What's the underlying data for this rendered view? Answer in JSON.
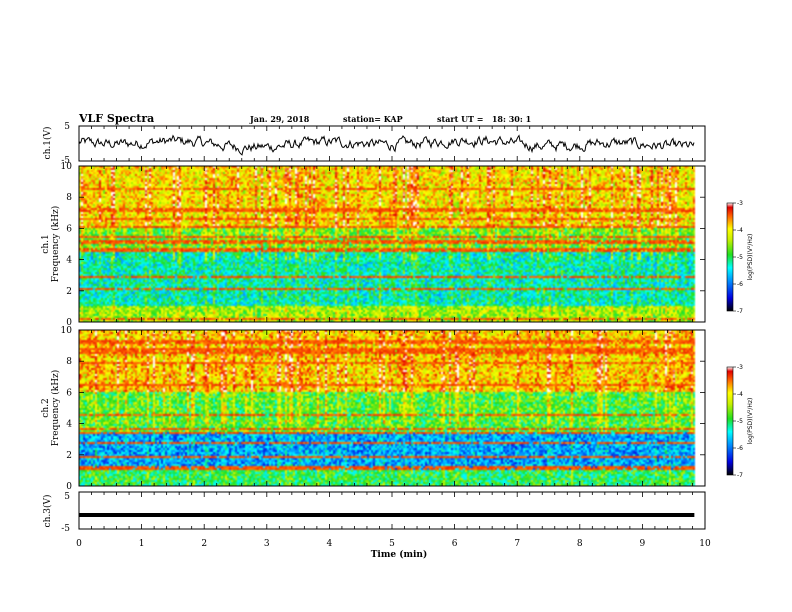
{
  "header": {
    "title": "VLF Spectra",
    "date": "Jan. 29, 2018",
    "station": "station= KAP",
    "start": "start UT =   18: 30: 1"
  },
  "chart_data": [
    {
      "type": "line",
      "name": "ch1-waveform",
      "ylabel": "ch.1(V)",
      "ylim": [
        -5,
        5
      ],
      "yticks": [
        "5",
        "-5"
      ],
      "xlim": [
        0,
        10
      ],
      "x_extent": [
        0,
        9.83
      ]
    },
    {
      "type": "heatmap",
      "name": "ch1-spectrogram",
      "ylabel": "ch.1\nFrequency (kHz)",
      "ylabel_lines": [
        "ch.1",
        "Frequency (kHz)"
      ],
      "ylim": [
        0,
        10
      ],
      "yticks": [
        "0",
        "2",
        "4",
        "6",
        "8",
        "10"
      ],
      "xlim": [
        0,
        10
      ],
      "x_extent": [
        0,
        9.83
      ],
      "colorbar": {
        "label": "log(PSD)(V²/Hz)",
        "ticks": [
          "-3",
          "-4",
          "-5",
          "-6",
          "-7"
        ],
        "range": [
          -7,
          -3
        ]
      },
      "dominant_bands": [
        {
          "from_khz": 0,
          "to_khz": 1.0,
          "level": -4.5
        },
        {
          "from_khz": 1.0,
          "to_khz": 4.5,
          "level": -5.3
        },
        {
          "from_khz": 4.5,
          "to_khz": 6.0,
          "level": -4.7
        },
        {
          "from_khz": 6.0,
          "to_khz": 10.0,
          "level": -4.0
        }
      ]
    },
    {
      "type": "heatmap",
      "name": "ch2-spectrogram",
      "ylabel": "ch.2\nFrequency (kHz)",
      "ylabel_lines": [
        "ch.2",
        "Frequency (kHz)"
      ],
      "ylim": [
        0,
        10
      ],
      "yticks": [
        "0",
        "2",
        "4",
        "6",
        "8",
        "10"
      ],
      "xlim": [
        0,
        10
      ],
      "x_extent": [
        0,
        9.83
      ],
      "colorbar": {
        "label": "log(PSD)(V²/Hz)",
        "ticks": [
          "-3",
          "-4",
          "-5",
          "-6",
          "-7"
        ],
        "range": [
          -7,
          -3
        ]
      },
      "dominant_bands": [
        {
          "from_khz": 0,
          "to_khz": 1.0,
          "level": -5.0
        },
        {
          "from_khz": 1.0,
          "to_khz": 3.5,
          "level": -5.8
        },
        {
          "from_khz": 3.5,
          "to_khz": 6.0,
          "level": -4.8
        },
        {
          "from_khz": 6.0,
          "to_khz": 10.0,
          "level": -3.9
        }
      ]
    },
    {
      "type": "line",
      "name": "ch3-waveform",
      "ylabel": "ch.3(V)",
      "ylim": [
        -5,
        5
      ],
      "yticks": [
        "5",
        "-5"
      ],
      "xlim": [
        0,
        10
      ],
      "x_extent": [
        0,
        9.83
      ],
      "level": -1.2,
      "xlabel": "Time (min)",
      "xticks": [
        "0",
        "1",
        "2",
        "3",
        "4",
        "5",
        "6",
        "7",
        "8",
        "9",
        "10"
      ]
    }
  ]
}
